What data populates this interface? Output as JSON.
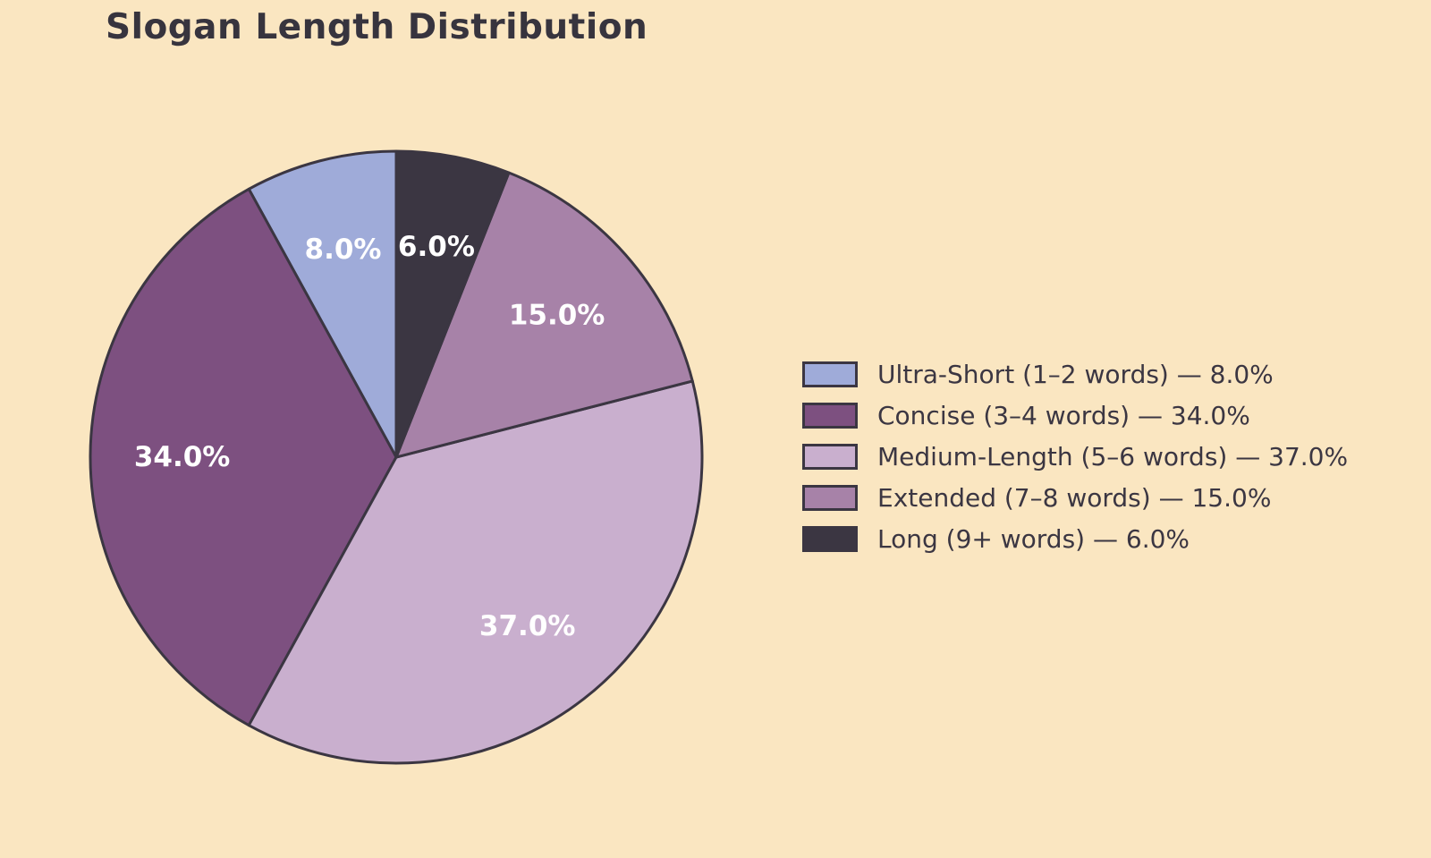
{
  "chart_data": {
    "type": "pie",
    "title": "Slogan Length Distribution",
    "background_color": "#FAE6C1",
    "title_color": "#37343E",
    "text_color": "#3B3642",
    "categories": [
      "Ultra-Short (1–2 words)",
      "Concise (3–4 words)",
      "Medium-Length (5–6 words)",
      "Extended (7–8 words)",
      "Long (9+ words)"
    ],
    "values": [
      8.0,
      34.0,
      37.0,
      15.0,
      6.0
    ],
    "slice_labels": [
      "8.0%",
      "34.0%",
      "37.0%",
      "15.0%",
      "6.0%"
    ],
    "colors": [
      "#9FABD9",
      "#7D5080",
      "#C9AFCE",
      "#A782A8",
      "#3B3642"
    ],
    "edge_color": "#3B3642",
    "edge_width": 3,
    "start_angle": 90,
    "direction": "counterclockwise",
    "label_color": "#FFFFFF",
    "label_distance": 0.7,
    "legend": {
      "position": "center right",
      "entries": [
        "Ultra-Short (1–2 words) — 8.0%",
        "Concise (3–4 words) — 34.0%",
        "Medium-Length (5–6 words) — 37.0%",
        "Extended (7–8 words) — 15.0%",
        "Long (9+ words) — 6.0%"
      ]
    }
  }
}
